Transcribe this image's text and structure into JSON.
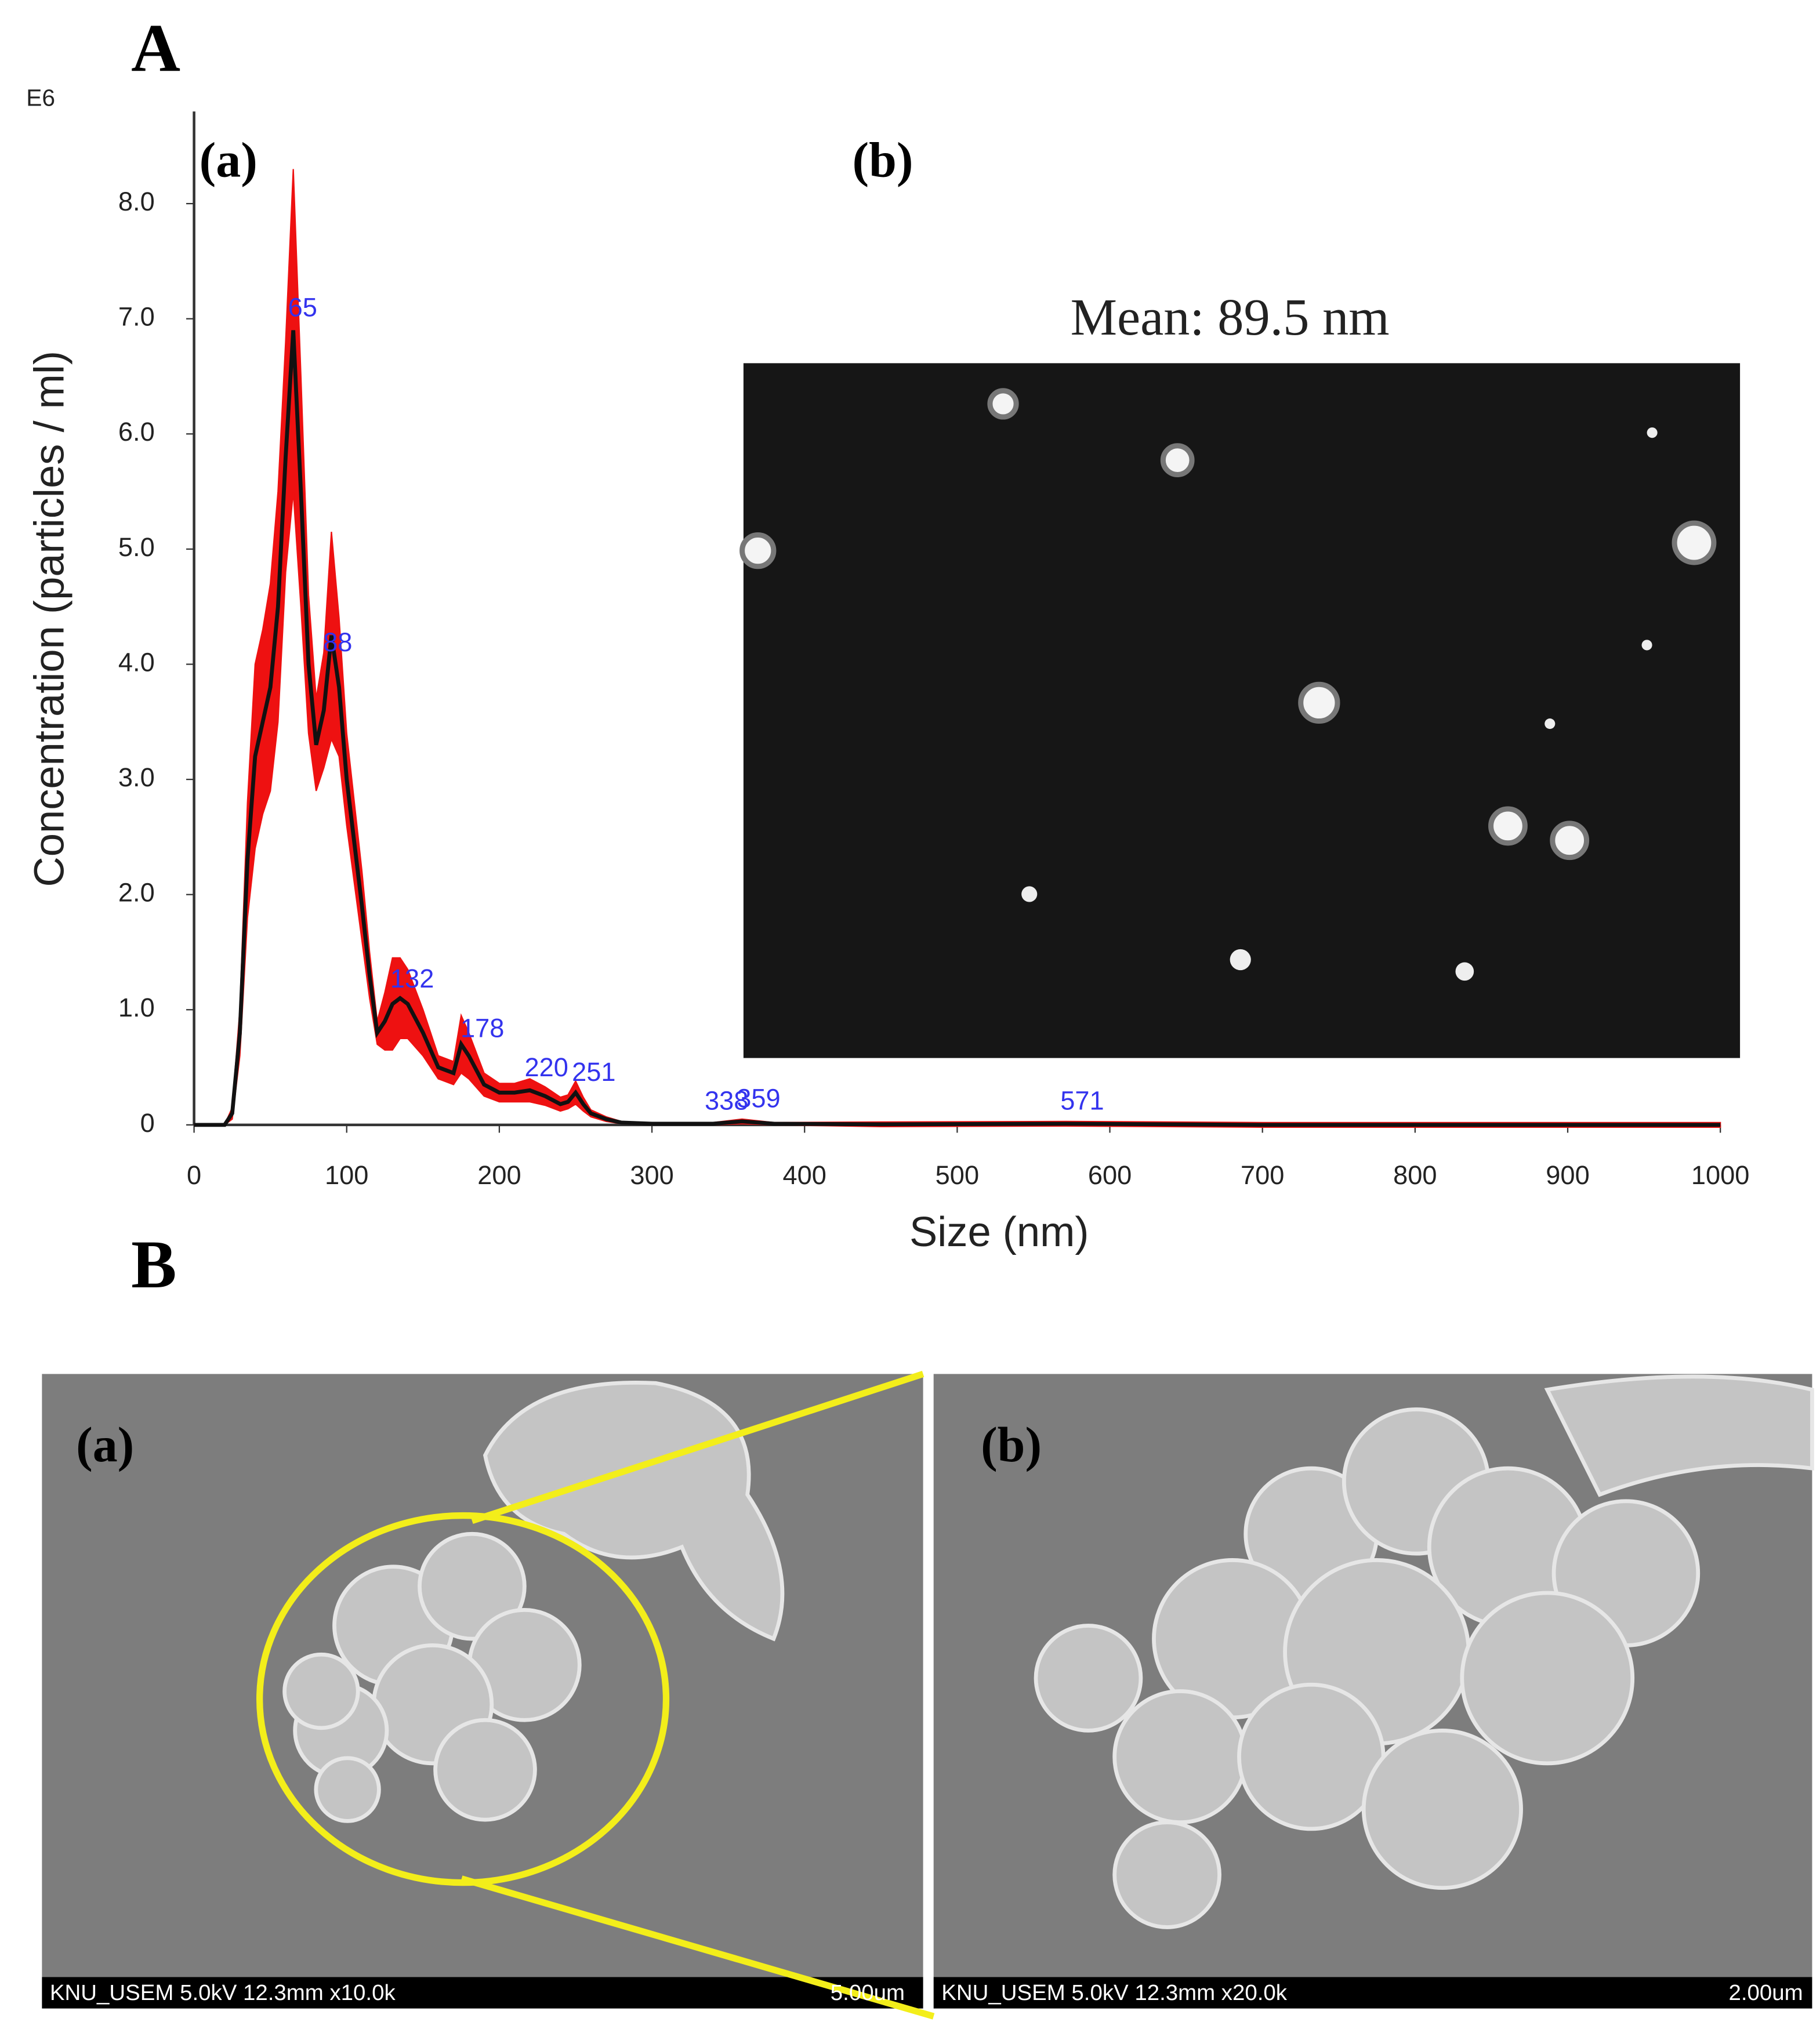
{
  "chart_data": {
    "type": "line",
    "multiplier": "E6",
    "xlabel": "Size (nm)",
    "ylabel": "Concentration (particles / ml)",
    "x": [
      0,
      20,
      25,
      30,
      35,
      40,
      45,
      50,
      55,
      60,
      65,
      70,
      75,
      80,
      85,
      90,
      95,
      100,
      110,
      115,
      120,
      125,
      130,
      135,
      140,
      150,
      160,
      170,
      175,
      180,
      190,
      200,
      210,
      220,
      230,
      240,
      245,
      250,
      255,
      260,
      270,
      280,
      300,
      340,
      359,
      380,
      450,
      571,
      700,
      1000
    ],
    "series": [
      {
        "color": "#111111",
        "band_color": "#ee1111",
        "values": [
          0,
          0,
          0.1,
          0.8,
          2.3,
          3.2,
          3.5,
          3.8,
          4.5,
          5.8,
          6.9,
          5.5,
          4.0,
          3.3,
          3.6,
          4.25,
          3.8,
          3.0,
          1.9,
          1.3,
          0.8,
          0.9,
          1.05,
          1.1,
          1.05,
          0.8,
          0.5,
          0.45,
          0.7,
          0.6,
          0.35,
          0.28,
          0.28,
          0.3,
          0.25,
          0.18,
          0.2,
          0.28,
          0.18,
          0.1,
          0.05,
          0.02,
          0.01,
          0.01,
          0.03,
          0.01,
          0.005,
          0.01,
          0,
          0
        ],
        "errors": [
          0,
          0,
          0.05,
          0.2,
          0.5,
          0.8,
          0.8,
          0.9,
          1.0,
          1.0,
          1.4,
          1.0,
          0.6,
          0.4,
          0.5,
          0.9,
          0.6,
          0.4,
          0.3,
          0.2,
          0.1,
          0.25,
          0.4,
          0.35,
          0.3,
          0.2,
          0.1,
          0.1,
          0.25,
          0.2,
          0.1,
          0.08,
          0.08,
          0.1,
          0.08,
          0.06,
          0.06,
          0.1,
          0.06,
          0.03,
          0.02,
          0.01,
          0.005,
          0.01,
          0.02,
          0.01,
          0.02,
          0.02,
          0.02,
          0.02
        ]
      }
    ],
    "peaks": [
      65,
      88,
      132,
      178,
      220,
      251,
      338,
      359,
      571
    ],
    "peak_color": "#3333ee",
    "xlim": [
      0,
      1000
    ],
    "xticks": [
      0,
      100,
      200,
      300,
      400,
      500,
      600,
      700,
      800,
      900,
      1000
    ],
    "ylim": [
      0,
      8.8
    ],
    "yticks": [
      0,
      {
        "value": 1,
        "label": "1.0"
      },
      {
        "value": 2,
        "label": "2.0"
      },
      {
        "value": 3,
        "label": "3.0"
      },
      {
        "value": 4,
        "label": "4.0"
      },
      {
        "value": 5,
        "label": "5.0"
      },
      {
        "value": 6,
        "label": "6.0"
      },
      {
        "value": 7,
        "label": "7.0"
      },
      {
        "value": 8,
        "label": "8.0"
      }
    ]
  },
  "figure": {
    "panel_A": "A",
    "panel_A_a": "(a)",
    "panel_A_b": "(b)",
    "mean_label": "Mean: 89.5 nm",
    "panel_B": "B",
    "panel_B_a": "(a)",
    "panel_B_b": "(b)",
    "sem_a": {
      "info": "KNU_USEM 5.0kV 12.3mm x10.0k",
      "scale": "5.00um"
    },
    "sem_b": {
      "info": "KNU_USEM 5.0kV 12.3mm x20.0k",
      "scale": "2.00um"
    }
  }
}
